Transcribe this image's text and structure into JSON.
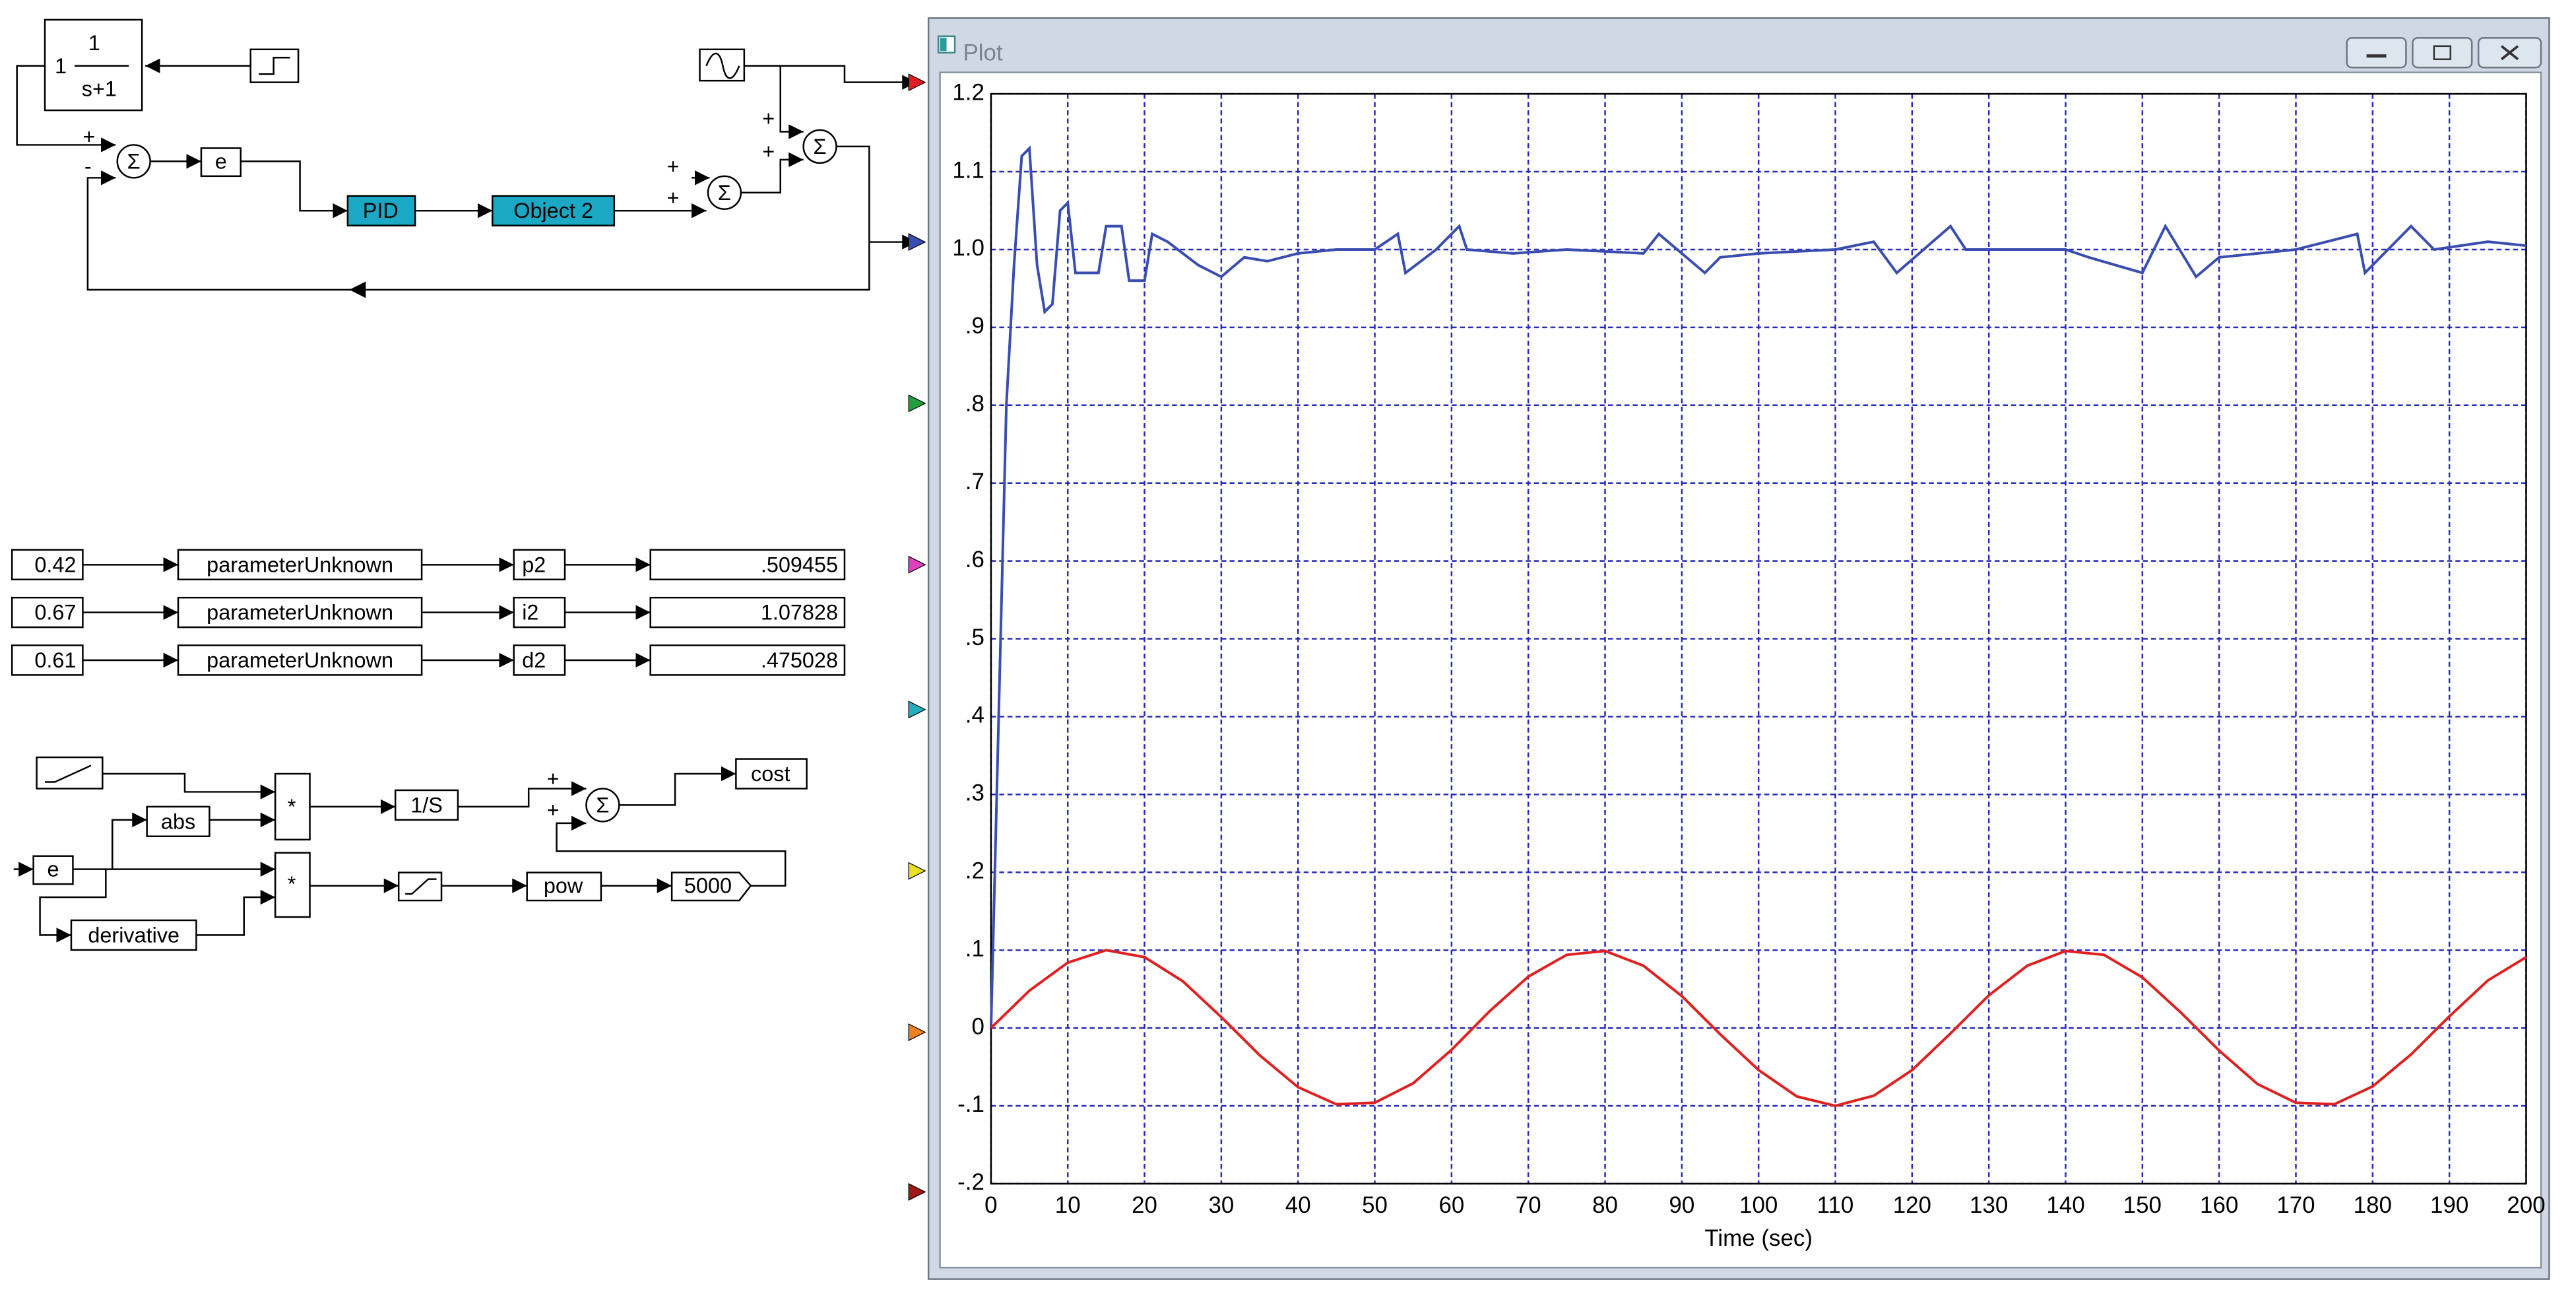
{
  "window_title": "Plot",
  "diagram": {
    "transfer_function": {
      "gain": "1",
      "numerator": "1",
      "denominator": "s+1"
    },
    "sum_symbol": "Σ",
    "signs": [
      "+",
      "-",
      "+",
      "+",
      "+",
      "+",
      "+",
      "+"
    ],
    "error_block": "e",
    "pid_block": "PID",
    "object_block": "Object 2",
    "parameter_rows": [
      [
        "0.42",
        "parameterUnknown",
        "p2",
        ".509455"
      ],
      [
        "0.67",
        "parameterUnknown",
        "i2",
        "1.07828"
      ],
      [
        "0.61",
        "parameterUnknown",
        "d2",
        ".475028"
      ]
    ],
    "cost": {
      "abs": "abs",
      "multiply": "*",
      "integrator": "1/S",
      "output": "cost",
      "input": "e",
      "derivative": "derivative",
      "multiply2": "*",
      "power": "pow",
      "constant": "5000"
    }
  },
  "chart_data": {
    "type": "line",
    "xlabel": "Time (sec)",
    "xlim": [
      0,
      200
    ],
    "xticks": [
      0,
      10,
      20,
      30,
      40,
      50,
      60,
      70,
      80,
      90,
      100,
      110,
      120,
      130,
      140,
      150,
      160,
      170,
      180,
      190,
      200
    ],
    "ylim": [
      -0.2,
      1.2
    ],
    "yticks": [
      {
        "value": -0.2,
        "label": "-.2"
      },
      {
        "value": -0.1,
        "label": "-.1"
      },
      0,
      {
        "value": 0.1,
        "label": ".1"
      },
      {
        "value": 0.2,
        "label": ".2"
      },
      {
        "value": 0.3,
        "label": ".3"
      },
      {
        "value": 0.4,
        "label": ".4"
      },
      {
        "value": 0.5,
        "label": ".5"
      },
      {
        "value": 0.6,
        "label": ".6"
      },
      {
        "value": 0.7,
        "label": ".7"
      },
      {
        "value": 0.8,
        "label": ".8"
      },
      {
        "value": 0.9,
        "label": ".9"
      },
      {
        "value": 1,
        "label": "1.0"
      },
      1.1,
      1.2
    ],
    "grid": true,
    "series": [
      {
        "color": "#3a4db0",
        "x": [
          0,
          1,
          2,
          3,
          4,
          5,
          6,
          7,
          8,
          9,
          10,
          11,
          14,
          15,
          17,
          18,
          20,
          21,
          23,
          27,
          30,
          33,
          36,
          40,
          45,
          50,
          53,
          54,
          58,
          61,
          62,
          68,
          75,
          85,
          87,
          93,
          95,
          100,
          110,
          115,
          118,
          125,
          127,
          140,
          143,
          150,
          153,
          157,
          160,
          170,
          178,
          179,
          185,
          188,
          195,
          200
        ],
        "values": [
          0,
          0.4,
          0.8,
          0.98,
          1.12,
          1.13,
          0.98,
          0.92,
          0.93,
          1.05,
          1.06,
          0.97,
          0.97,
          1.03,
          1.03,
          0.96,
          0.96,
          1.02,
          1.01,
          0.98,
          0.965,
          0.99,
          0.985,
          0.995,
          1,
          1,
          1.02,
          0.97,
          1,
          1.03,
          1,
          0.995,
          1,
          0.995,
          1.02,
          0.97,
          0.99,
          0.995,
          1,
          1.01,
          0.97,
          1.03,
          1,
          1,
          0.99,
          0.97,
          1.03,
          0.965,
          0.99,
          1,
          1.02,
          0.97,
          1.03,
          1,
          1.01,
          1.005
        ]
      },
      {
        "color": "#e02020",
        "x": [
          0,
          5,
          10,
          15,
          20,
          25,
          30,
          35,
          40,
          45,
          50,
          55,
          60,
          65,
          70,
          75,
          80,
          85,
          90,
          95,
          100,
          105,
          110,
          115,
          120,
          125,
          130,
          135,
          140,
          145,
          150,
          155,
          160,
          165,
          170,
          175,
          180,
          185,
          190,
          195,
          200
        ],
        "values": [
          0,
          0.048,
          0.084,
          0.1,
          0.091,
          0.06,
          0.014,
          -0.035,
          -0.076,
          -0.098,
          -0.096,
          -0.071,
          -0.028,
          0.022,
          0.066,
          0.094,
          0.099,
          0.08,
          0.041,
          -0.008,
          -0.054,
          -0.088,
          -0.1,
          -0.087,
          -0.054,
          -0.007,
          0.042,
          0.08,
          0.099,
          0.094,
          0.065,
          0.02,
          -0.029,
          -0.072,
          -0.096,
          -0.098,
          -0.075,
          -0.034,
          0.015,
          0.061,
          0.091
        ]
      }
    ]
  }
}
